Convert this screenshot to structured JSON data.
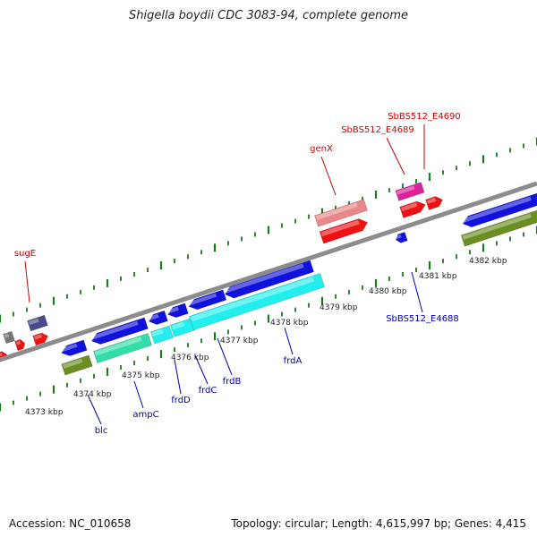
{
  "header": {
    "title": "Shigella boydii CDC 3083-94, complete genome"
  },
  "footer": {
    "accession": "Accession: NC_010658",
    "summary": "Topology: circular; Length: 4,615,997 bp; Genes: 4,415"
  },
  "colors": {
    "backbone": "#8c8c8c",
    "tick": "#1a7a1a",
    "label_forward": "#cc0000",
    "label_reverse": "#0000aa",
    "red": "#ee1111",
    "pink": "#e88888",
    "magenta": "#dd2299",
    "blue": "#1111dd",
    "cyan": "#22eeee",
    "seagreen": "#33ddaa",
    "olive": "#6b8e23",
    "slate": "#4a4a8a",
    "gray": "#777777"
  },
  "kbp_labels": [
    "4373 kbp",
    "4374 kbp",
    "4375 kbp",
    "4376 kbp",
    "4377 kbp",
    "4378 kbp",
    "4379 kbp",
    "4380 kbp",
    "4381 kbp",
    "4382 kbp"
  ],
  "gene_labels_forward": [
    "sugE",
    "genX",
    "SbBS512_E4689",
    "SbBS512_E4690"
  ],
  "gene_labels_reverse": [
    "blc",
    "ampC",
    "frdD",
    "frdC",
    "frdB",
    "frdA",
    "SbBS512_E4688"
  ]
}
